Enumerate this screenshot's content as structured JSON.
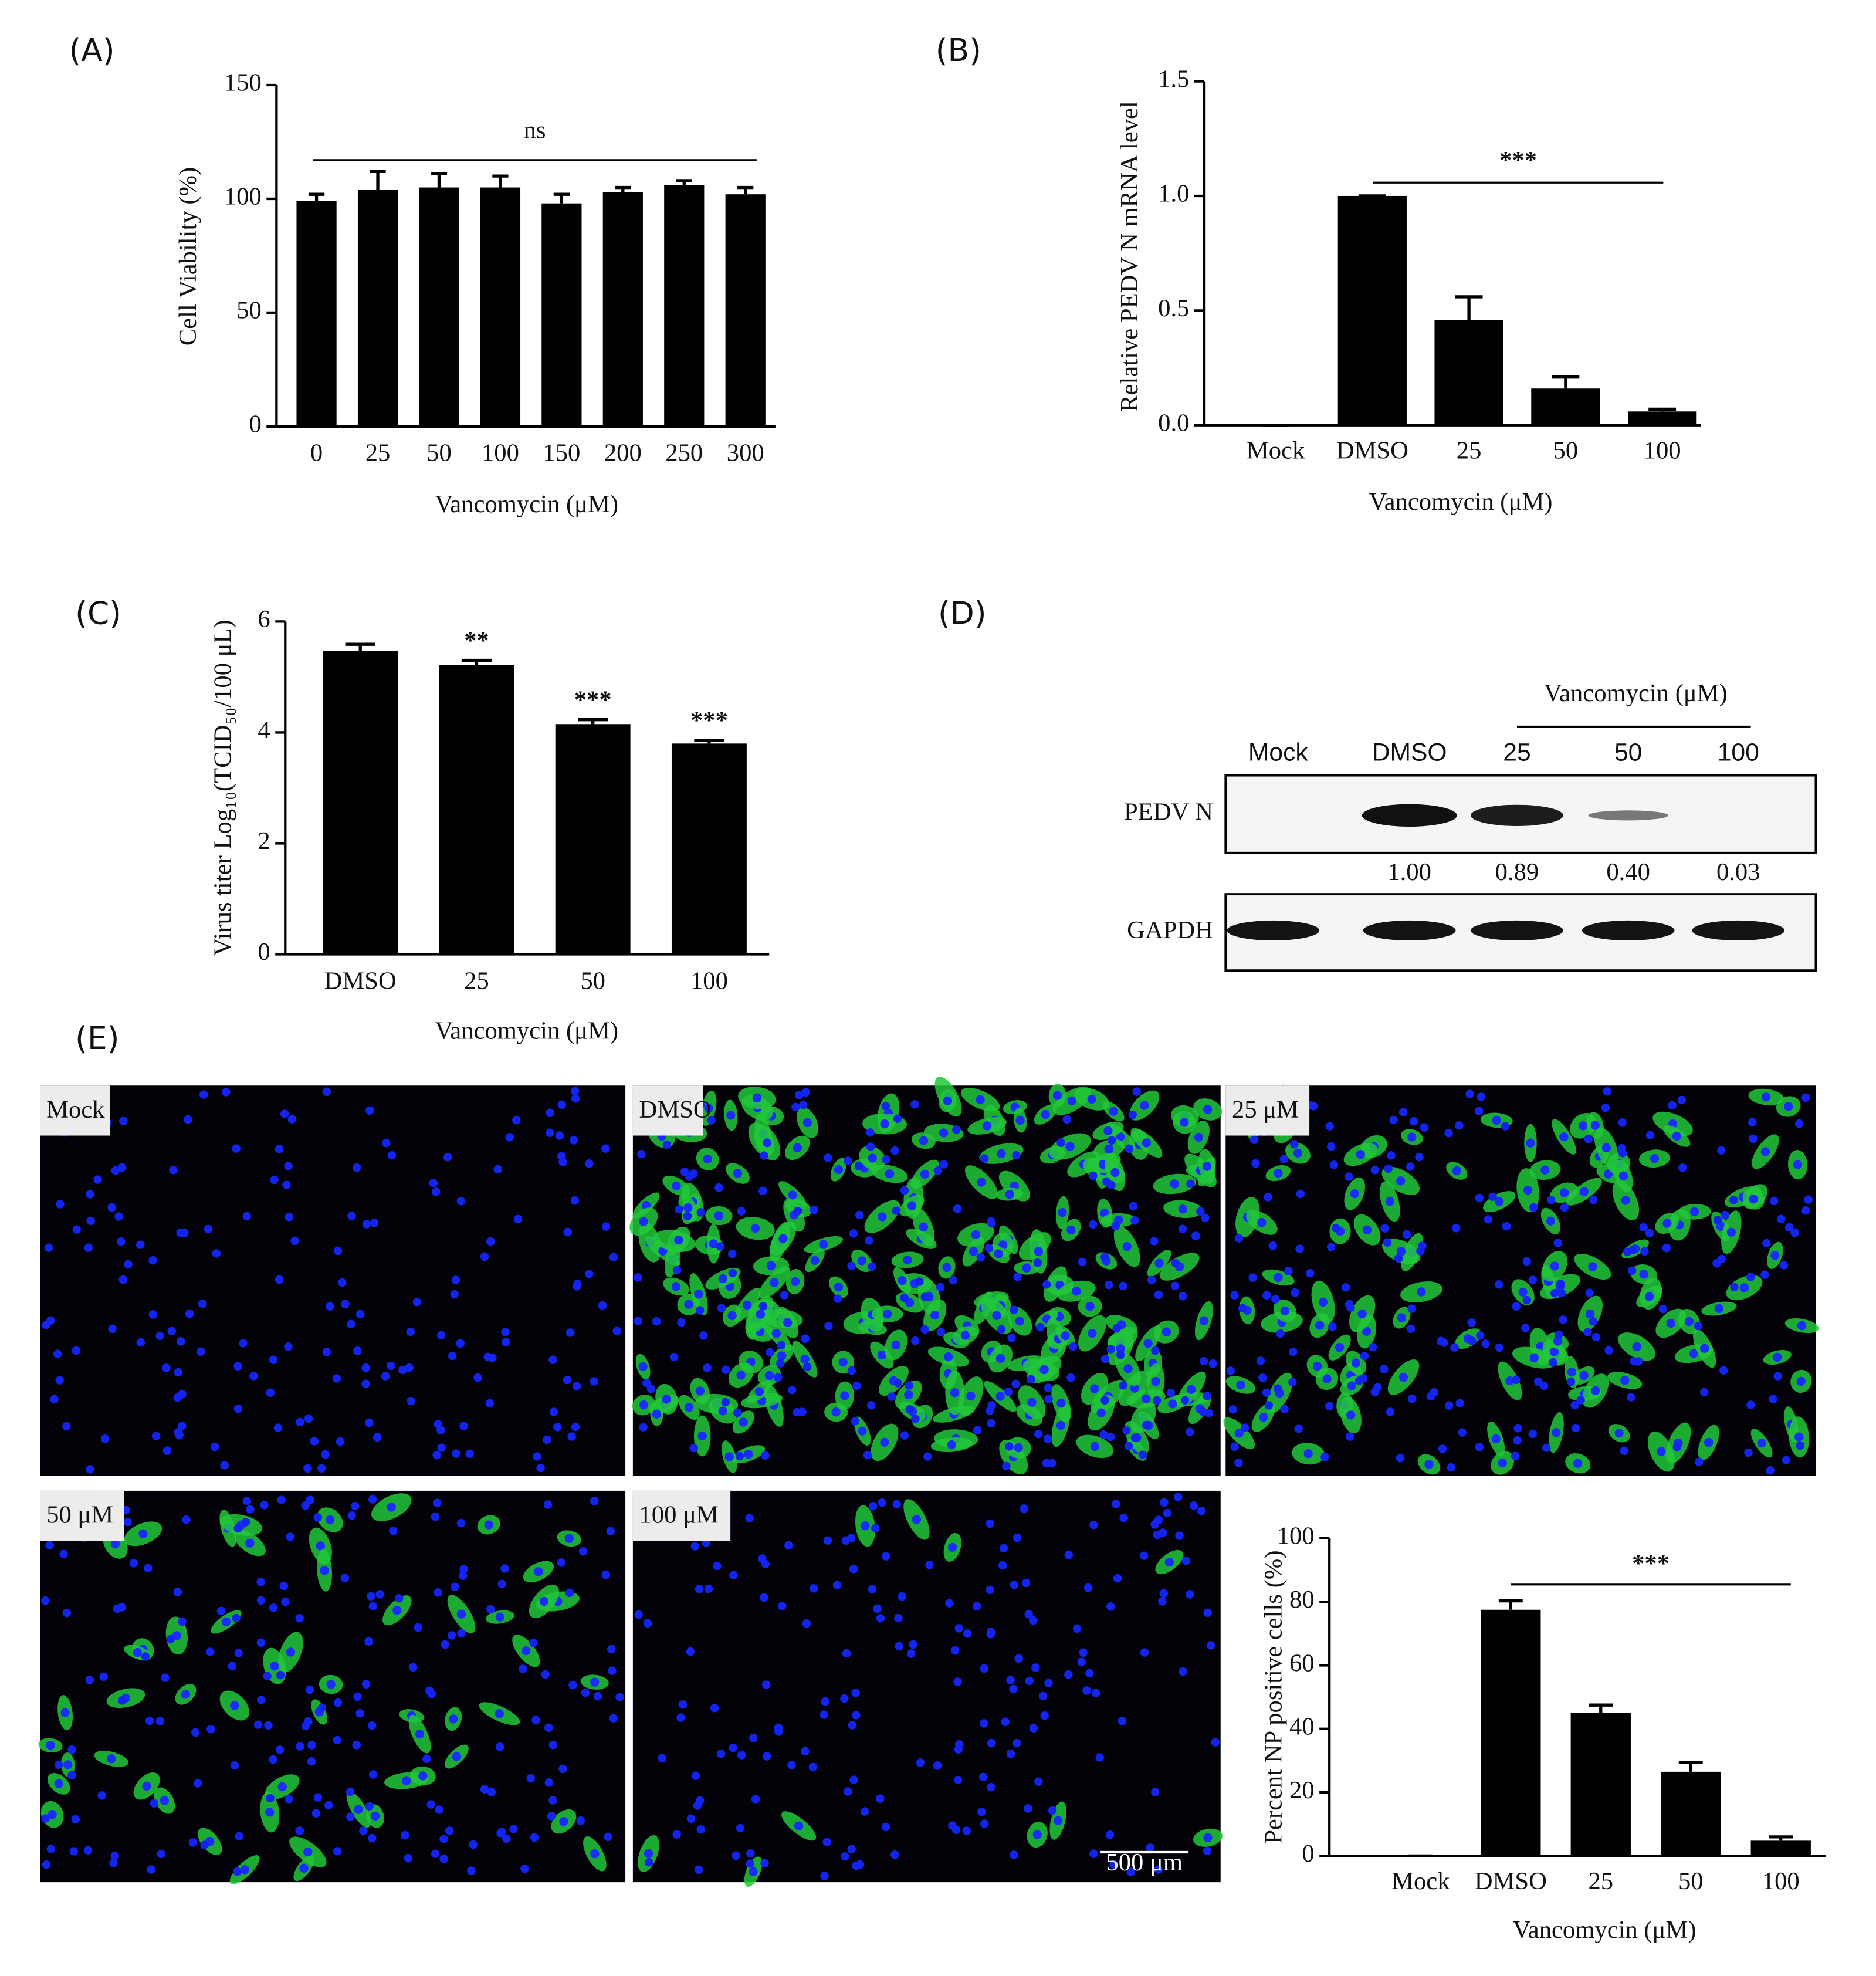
{
  "panel_labels": [
    "(A)",
    "(B)",
    "(C)",
    "(D)",
    "(E)"
  ],
  "chart_data": [
    {
      "type": "bar",
      "xlabel": "Vancomycin (μM)",
      "ylabel": "Cell Viability (%)",
      "categories": [
        "0",
        "25",
        "50",
        "100",
        "150",
        "200",
        "250",
        "300"
      ],
      "values": [
        99,
        104,
        105,
        105,
        98,
        103,
        106,
        102
      ],
      "errors": [
        3,
        8,
        6,
        5,
        4,
        2,
        2,
        3
      ],
      "color": "#000000",
      "ylim": [
        0,
        150
      ],
      "yticks": [
        0,
        50,
        100,
        150
      ],
      "annotation": "ns"
    },
    {
      "type": "bar",
      "xlabel": "Vancomycin (μM)",
      "ylabel": "Relative PEDV N mRNA level",
      "categories": [
        "Mock",
        "DMSO",
        "25",
        "50",
        "100"
      ],
      "values": [
        0,
        1.0,
        0.46,
        0.16,
        0.06
      ],
      "errors": [
        0,
        0,
        0.1,
        0.05,
        0.01
      ],
      "color": "#000000",
      "ylim": [
        0,
        1.5
      ],
      "yticks": [
        {
          "value": 0,
          "label": "0.0"
        },
        {
          "value": 0.5,
          "label": "0.5"
        },
        {
          "value": 1,
          "label": "1.0"
        },
        {
          "value": 1.5,
          "label": "1.5"
        }
      ],
      "annotation": "***"
    },
    {
      "type": "bar",
      "xlabel": "Vancomycin (μM)",
      "ylabel": "Virus titer Log₁₀(TCID₅₀/100 μL)",
      "categories": [
        "DMSO",
        "25",
        "50",
        "100"
      ],
      "values": [
        5.47,
        5.22,
        4.15,
        3.8
      ],
      "errors": [
        0.12,
        0.08,
        0.08,
        0.06
      ],
      "bar_labels": [
        null,
        "**",
        "***",
        "***"
      ],
      "color": "#000000",
      "ylim": [
        0,
        6
      ],
      "yticks": [
        0,
        2,
        4,
        6
      ]
    },
    {
      "type": "bar",
      "xlabel": "Vancomycin (μM)",
      "ylabel": "Percent NP positive cells (%)",
      "categories": [
        "Mock",
        "DMSO",
        "25",
        "50",
        "100"
      ],
      "values": [
        0,
        77.5,
        45,
        26.5,
        4.8
      ],
      "errors": [
        0,
        2.8,
        2.5,
        3,
        1.2
      ],
      "color": "#000000",
      "ylim": [
        0,
        100
      ],
      "yticks": [
        0,
        20,
        40,
        60,
        80,
        100
      ],
      "annotation": "***"
    }
  ],
  "western_blot": {
    "header": "Vancomycin (μM)",
    "lanes": [
      "Mock",
      "DMSO",
      "25",
      "50",
      "100"
    ],
    "rows": [
      "PEDV N",
      "GAPDH"
    ],
    "quantification": [
      "1.00",
      "0.89",
      "0.40",
      "0.03"
    ]
  },
  "images": {
    "labels": [
      "Mock",
      "DMSO",
      "25 μM",
      "50 μM",
      "100 μM"
    ],
    "scale_bar": "500 μm"
  }
}
